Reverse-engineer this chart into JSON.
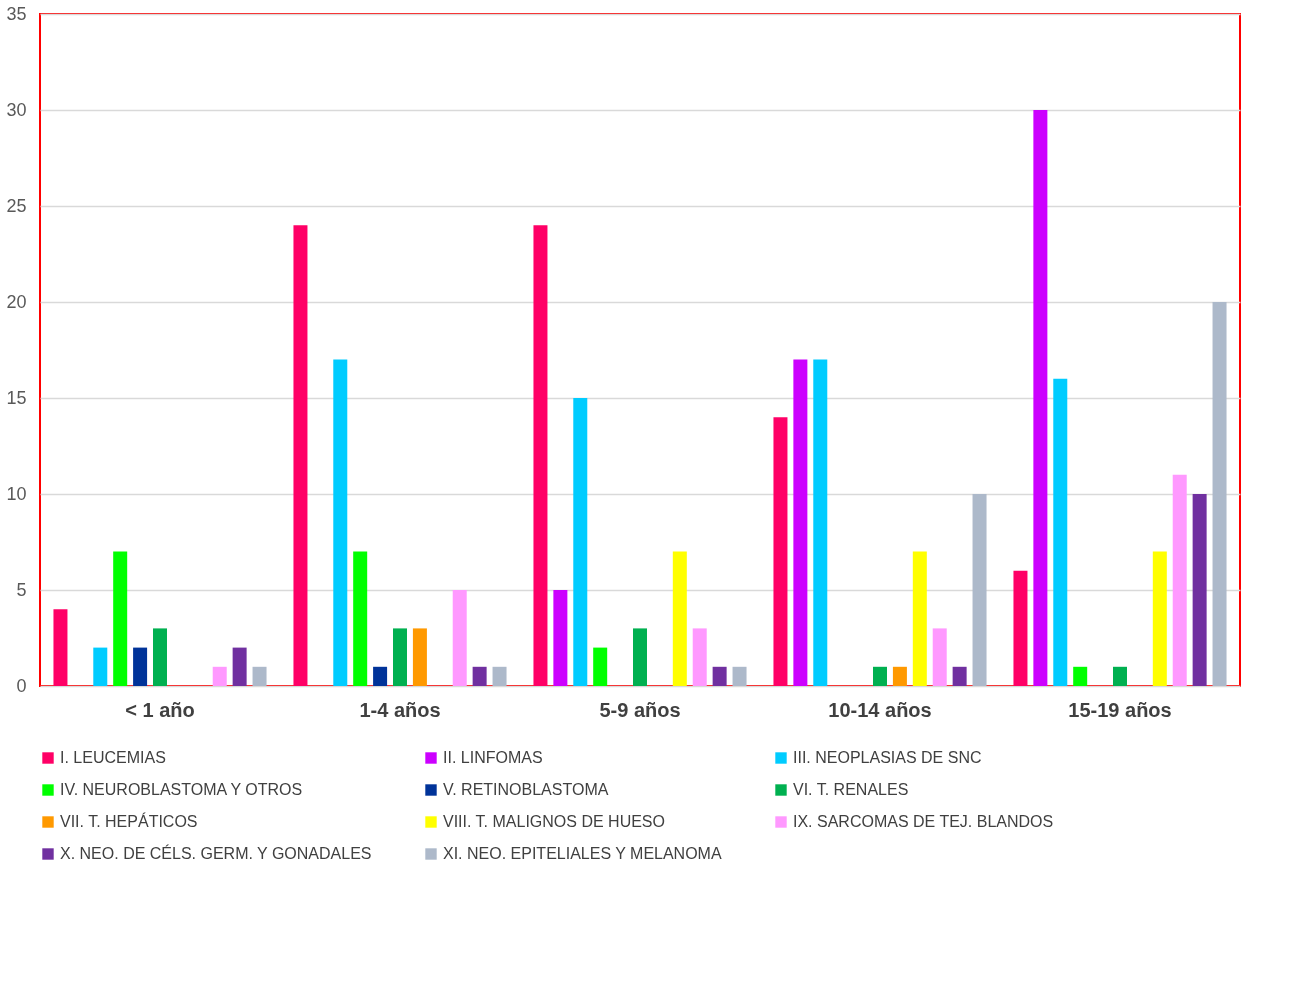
{
  "chart_data": {
    "type": "bar",
    "categories": [
      "< 1 año",
      "1-4 años",
      "5-9 años",
      "10-14 años",
      "15-19 años"
    ],
    "series": [
      {
        "name": "I. LEUCEMIAS",
        "color": "#ff0066",
        "values": [
          4,
          24,
          24,
          14,
          6
        ]
      },
      {
        "name": "II. LINFOMAS",
        "color": "#cc00ff",
        "values": [
          0,
          0,
          5,
          17,
          30
        ]
      },
      {
        "name": "III. NEOPLASIAS DE SNC",
        "color": "#00ccff",
        "values": [
          2,
          17,
          15,
          17,
          16
        ]
      },
      {
        "name": "IV. NEUROBLASTOMA Y OTROS",
        "color": "#00ff00",
        "values": [
          7,
          7,
          2,
          0,
          1
        ]
      },
      {
        "name": "V. RETINOBLASTOMA",
        "color": "#003399",
        "values": [
          2,
          1,
          0,
          0,
          0
        ]
      },
      {
        "name": "VI. T. RENALES",
        "color": "#00b050",
        "values": [
          3,
          3,
          3,
          1,
          1
        ]
      },
      {
        "name": "VII. T. HEPÁTICOS",
        "color": "#ff9900",
        "values": [
          0,
          3,
          0,
          1,
          0
        ]
      },
      {
        "name": "VIII. T. MALIGNOS DE HUESO",
        "color": "#ffff00",
        "values": [
          0,
          0,
          7,
          7,
          7
        ]
      },
      {
        "name": "IX. SARCOMAS DE TEJ. BLANDOS",
        "color": "#ff99ff",
        "values": [
          1,
          5,
          3,
          3,
          11
        ]
      },
      {
        "name": "X. NEO. DE CÉLS. GERM. Y GONADALES",
        "color": "#7030a0",
        "values": [
          2,
          1,
          1,
          1,
          10
        ]
      },
      {
        "name": "XI. NEO. EPITELIALES Y MELANOMA",
        "color": "#adb9ca",
        "values": [
          1,
          1,
          1,
          10,
          20
        ]
      }
    ],
    "ylim": [
      0,
      35
    ],
    "yticks": [
      0,
      5,
      10,
      15,
      20,
      25,
      30,
      35
    ],
    "grid": "y",
    "legend": "bottom"
  }
}
